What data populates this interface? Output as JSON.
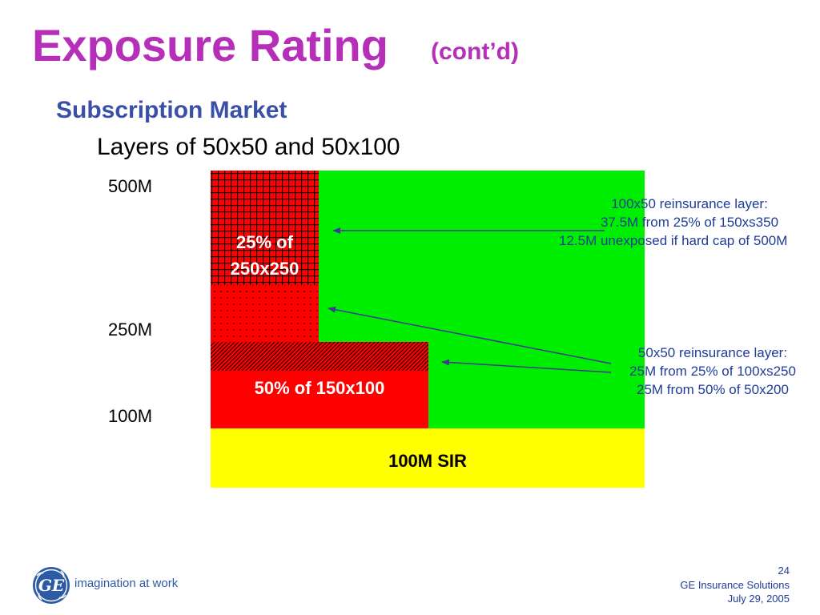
{
  "slide": {
    "title": "Exposure Rating",
    "title_suffix": "(cont’d)",
    "subtitle": "Subscription Market",
    "subheading": "Layers of 50x50 and 50x100"
  },
  "axis": {
    "labels": [
      "500M",
      "250M",
      "100M"
    ]
  },
  "blocks": {
    "upper_label_line1": "25% of",
    "upper_label_line2": "250x250",
    "middle_label": "50% of 150x100",
    "base_label": "100M SIR"
  },
  "annotations": {
    "top": {
      "line1": "100x50 reinsurance layer:",
      "line2": "37.5M from 25% of 150xs350",
      "line3": "12.5M unexposed if hard cap of 500M"
    },
    "bottom": {
      "line1": "50x50 reinsurance layer:",
      "line2": "25M from 25% of 100xs250",
      "line3": "25M from 50% of 50x200"
    }
  },
  "footer": {
    "page_number": "24",
    "company": "GE Insurance Solutions",
    "date": "July 29, 2005",
    "tagline": "imagination at work",
    "logo_text": "GE"
  },
  "colors": {
    "title": "#b52fb9",
    "subtitle": "#3a4fa8",
    "green_area": "#00ee00",
    "red_block": "#ff0000",
    "yellow_base": "#ffff00",
    "annotation": "#1f3c98"
  }
}
